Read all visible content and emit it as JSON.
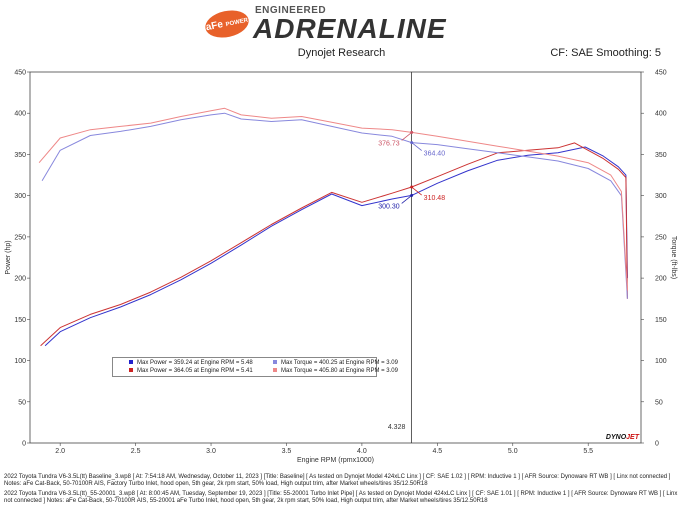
{
  "header": {
    "logo_badge": "aFe",
    "logo_badge_sub": "POWER",
    "logo_engineered": "ENGINEERED",
    "logo_main": "ADRENALINE",
    "company": "Dynojet Research",
    "correction": "CF: SAE Smoothing: 5"
  },
  "chart_data": {
    "type": "line",
    "xlabel": "Engine RPM (rpmx1000)",
    "ylabel_left": "Power (hp)",
    "ylabel_right": "Torque (ft-lbs)",
    "xlim": [
      1.8,
      5.85
    ],
    "ylim": [
      0,
      450
    ],
    "xticks": [
      "2.0",
      "2.5",
      "3.0",
      "3.5",
      "4.0",
      "4.5",
      "5.0",
      "5.5"
    ],
    "yticks": [
      "0",
      "50",
      "100",
      "150",
      "200",
      "250",
      "300",
      "350",
      "400",
      "450"
    ],
    "grid": false,
    "cursor_x": 4.328,
    "cursor_label": "4.328",
    "series": [
      {
        "role": "baseline power",
        "color": "#3333cc",
        "x": [
          1.9,
          2.0,
          2.2,
          2.4,
          2.6,
          2.8,
          3.0,
          3.2,
          3.4,
          3.6,
          3.8,
          4.0,
          4.2,
          4.33,
          4.5,
          4.7,
          4.9,
          5.1,
          5.3,
          5.48,
          5.6,
          5.7,
          5.75,
          5.76
        ],
        "y": [
          118,
          135,
          152,
          165,
          180,
          198,
          218,
          240,
          263,
          283,
          302,
          288,
          296,
          300.3,
          315,
          330,
          343,
          349,
          352,
          359,
          348,
          335,
          325,
          200
        ]
      },
      {
        "role": "modified power",
        "color": "#cc3333",
        "x": [
          1.87,
          2.0,
          2.2,
          2.4,
          2.6,
          2.8,
          3.0,
          3.2,
          3.4,
          3.6,
          3.8,
          4.0,
          4.2,
          4.33,
          4.5,
          4.7,
          4.9,
          5.1,
          5.3,
          5.41,
          5.6,
          5.7,
          5.75,
          5.76
        ],
        "y": [
          118,
          140,
          156,
          168,
          183,
          201,
          221,
          243,
          265,
          285,
          304,
          292,
          303,
          310.5,
          323,
          338,
          352,
          355,
          358,
          364,
          345,
          332,
          322,
          175
        ]
      },
      {
        "role": "baseline torque",
        "color": "#8888dd",
        "x": [
          1.88,
          2.0,
          2.2,
          2.4,
          2.6,
          2.8,
          3.0,
          3.09,
          3.2,
          3.4,
          3.6,
          3.8,
          4.0,
          4.2,
          4.33,
          4.5,
          4.7,
          4.9,
          5.1,
          5.3,
          5.5,
          5.65,
          5.72,
          5.76
        ],
        "y": [
          318,
          355,
          373,
          378,
          384,
          392,
          398,
          400,
          393,
          390,
          392,
          384,
          376,
          372,
          364.4,
          362,
          357,
          352,
          347,
          342,
          333,
          318,
          300,
          175
        ]
      },
      {
        "role": "modified torque",
        "color": "#ee8888",
        "x": [
          1.86,
          2.0,
          2.2,
          2.4,
          2.6,
          2.8,
          3.0,
          3.09,
          3.2,
          3.4,
          3.6,
          3.8,
          4.0,
          4.2,
          4.33,
          4.5,
          4.7,
          4.9,
          5.1,
          5.3,
          5.5,
          5.65,
          5.72,
          5.76
        ],
        "y": [
          340,
          370,
          380,
          384,
          388,
          396,
          403,
          406,
          398,
          394,
          396,
          389,
          382,
          380,
          376.7,
          372,
          366,
          360,
          354,
          348,
          340,
          325,
          305,
          185
        ]
      }
    ],
    "annotations": [
      {
        "text": "376.73",
        "color": "#cc5566",
        "x": 4.33,
        "y": 376.73,
        "side": "left"
      },
      {
        "text": "364.40",
        "color": "#6666cc",
        "x": 4.33,
        "y": 364.4,
        "side": "right"
      },
      {
        "text": "300.30",
        "color": "#2222aa",
        "x": 4.33,
        "y": 300.3,
        "side": "left"
      },
      {
        "text": "310.48",
        "color": "#cc2222",
        "x": 4.33,
        "y": 310.48,
        "side": "right"
      }
    ],
    "legend": [
      {
        "color": "#2222cc",
        "text": "Max Power = 359.24 at Engine RPM = 5.48"
      },
      {
        "color": "#8888dd",
        "text": "Max Torque = 400.25 at Engine RPM = 3.09"
      },
      {
        "color": "#cc2222",
        "text": "Max Power = 364.05 at Engine RPM = 5.41"
      },
      {
        "color": "#ee8888",
        "text": "Max Torque = 405.80 at Engine RPM = 3.09"
      }
    ]
  },
  "notes": [
    "2022 Toyota Tundra V6-3.5L(tt) Baseline_3.wp8 [ At: 7:54:18 AM, Wednesday, October 11, 2023 ] [Title: Baseline] [ As tested on Dynojet Model 424xLC Linx ] [ CF: SAE 1.02 ] [ RPM: Inductive 1 ] [ AFR Source: Dynoware RT WB ] [ Linx not connected ] Notes: aFe Cat-Back, 50-70100R AIS, Factory Turbo Inlet, hood open, 5th gear, 2k rpm start, 50% load, High output trim, after Market wheels/tires 35/12.50R18",
    "2022 Toyota Tundra V6-3.5L(tt)_55-20001_3.wp8 [ At: 8:00:45 AM, Tuesday, September 19, 2023 ] [Title: 55-20001 Turbo Inlet Pipe] [ As tested on Dynojet Model 424xLC Linx ] [ CF: SAE 1.01 ] [ RPM: Inductive 1 ] [ AFR Source: Dynoware RT WB ] [ Linx not connected ] Notes: aFe Cat-Back, 50-70100R AIS, 55-20001 aFe Turbo Inlet, hood open, 5th gear, 2k rpm start, 50% load, High output trim, after Market wheels/tires 35/12.50R18"
  ],
  "footer_logo": {
    "left": "DYNO",
    "right": "JET"
  }
}
